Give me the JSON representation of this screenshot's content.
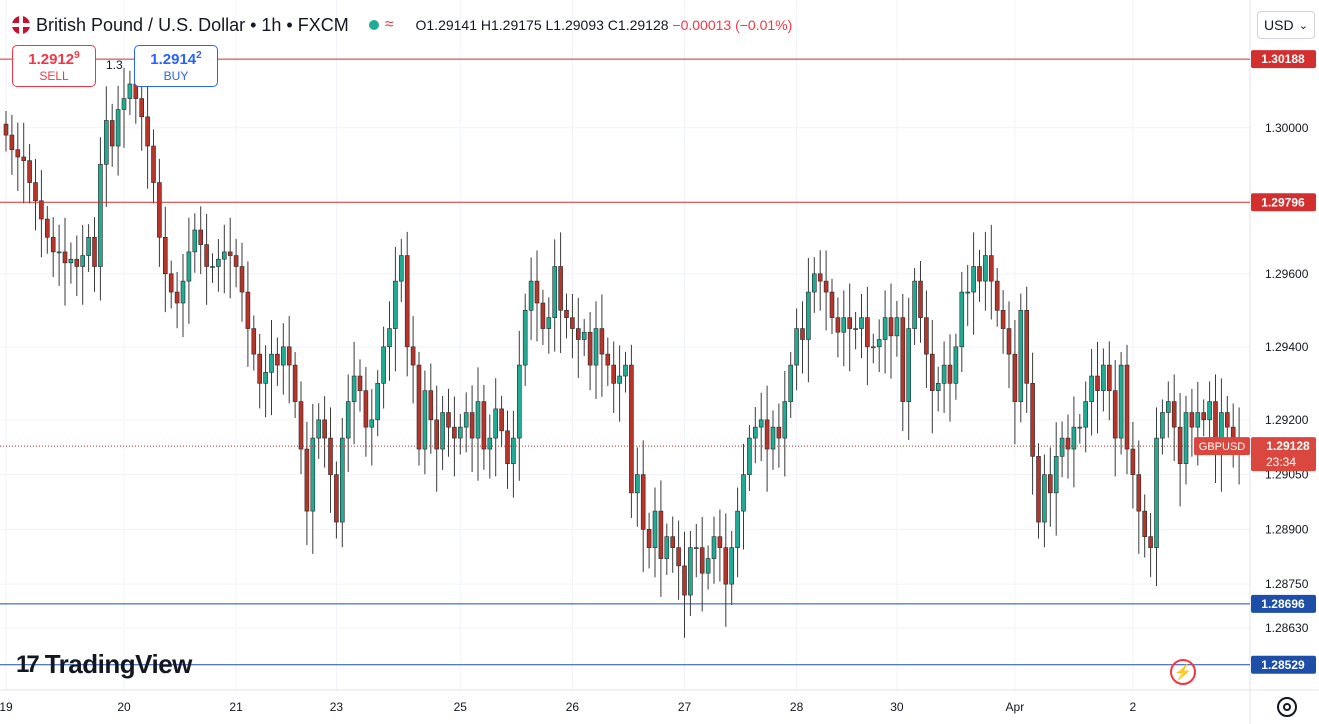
{
  "header": {
    "title": "British Pound / U.S. Dollar • 1h • FXCM",
    "open": "O1.29141",
    "high": "H1.29175",
    "low": "L1.29093",
    "close": "C1.29128",
    "change": "−0.00013 (−0.01%)"
  },
  "trade": {
    "sell_price_main": "1.2912",
    "sell_price_sup": "9",
    "sell_label": "SELL",
    "spread": "1.3",
    "buy_price_main": "1.2914",
    "buy_price_sup": "2",
    "buy_label": "BUY"
  },
  "currency": {
    "label": "USD",
    "icon": "chevron-down-icon"
  },
  "branding": {
    "logo_text": "TradingView",
    "logo_mark": "17"
  },
  "colors": {
    "up": "#22ab94",
    "down": "#f23645",
    "candle_body_up": "#22ab94",
    "candle_body_down": "#b5352a",
    "resistance": "#d32f2f",
    "support": "#1e4fa8",
    "text": "#131722"
  },
  "chart_data": {
    "type": "candlestick",
    "symbol": "GBPUSD",
    "timeframe": "1h",
    "ylim": [
      1.2846,
      1.3035
    ],
    "y_ticks": [
      "1.30000",
      "1.29600",
      "1.29400",
      "1.29200",
      "1.29050",
      "1.28900",
      "1.28750",
      "1.28630"
    ],
    "x_ticks": [
      {
        "label": "19",
        "index": 0
      },
      {
        "label": "20",
        "index": 20
      },
      {
        "label": "21",
        "index": 39
      },
      {
        "label": "23",
        "index": 56
      },
      {
        "label": "25",
        "index": 77
      },
      {
        "label": "26",
        "index": 96
      },
      {
        "label": "27",
        "index": 115
      },
      {
        "label": "28",
        "index": 134
      },
      {
        "label": "30",
        "index": 151
      },
      {
        "label": "Apr",
        "index": 171
      },
      {
        "label": "2",
        "index": 191
      }
    ],
    "levels": [
      {
        "price": 1.30188,
        "label": "1.30188",
        "kind": "resistance"
      },
      {
        "price": 1.29796,
        "label": "1.29796",
        "kind": "resistance"
      },
      {
        "price": 1.28696,
        "label": "1.28696",
        "kind": "support"
      },
      {
        "price": 1.28529,
        "label": "1.28529",
        "kind": "support"
      }
    ],
    "last_price": {
      "price": 1.29128,
      "label": "1.29128",
      "symbol": "GBPUSD",
      "countdown": "23:34"
    },
    "close": [
      1.2998,
      1.2994,
      1.2992,
      1.2991,
      1.2985,
      1.298,
      1.2975,
      1.297,
      1.2966,
      1.2966,
      1.2963,
      1.2964,
      1.2962,
      1.2965,
      1.297,
      1.2962,
      1.299,
      1.3002,
      1.2995,
      1.3005,
      1.3008,
      1.3012,
      1.3008,
      1.3003,
      1.2995,
      1.2985,
      1.297,
      1.296,
      1.2955,
      1.2952,
      1.2958,
      1.2966,
      1.2972,
      1.2968,
      1.2962,
      1.2962,
      1.2964,
      1.2966,
      1.2965,
      1.2962,
      1.2955,
      1.2945,
      1.2938,
      1.293,
      1.2933,
      1.2938,
      1.2935,
      1.294,
      1.2935,
      1.2925,
      1.2912,
      1.2895,
      1.2915,
      1.292,
      1.2915,
      1.2905,
      1.2892,
      1.2915,
      1.2925,
      1.2932,
      1.2928,
      1.2918,
      1.292,
      1.293,
      1.294,
      1.2945,
      1.2958,
      1.2965,
      1.294,
      1.2935,
      1.2912,
      1.2928,
      1.292,
      1.2912,
      1.2922,
      1.2918,
      1.2915,
      1.2918,
      1.2922,
      1.2915,
      1.2925,
      1.2912,
      1.2915,
      1.2923,
      1.2917,
      1.2908,
      1.2915,
      1.2935,
      1.295,
      1.2958,
      1.2952,
      1.2945,
      1.2948,
      1.2962,
      1.295,
      1.2948,
      1.2945,
      1.2942,
      1.2944,
      1.2935,
      1.2945,
      1.2938,
      1.2935,
      1.293,
      1.2932,
      1.2935,
      1.29,
      1.2905,
      1.289,
      1.2885,
      1.2895,
      1.2882,
      1.2888,
      1.2885,
      1.288,
      1.2872,
      1.2885,
      1.2885,
      1.2878,
      1.2882,
      1.2888,
      1.2885,
      1.2875,
      1.2885,
      1.2895,
      1.2905,
      1.2915,
      1.2918,
      1.292,
      1.2912,
      1.2918,
      1.2915,
      1.2925,
      1.2935,
      1.2945,
      1.2942,
      1.2955,
      1.296,
      1.2958,
      1.2955,
      1.2948,
      1.2944,
      1.2948,
      1.2945,
      1.2945,
      1.2948,
      1.294,
      1.294,
      1.2942,
      1.2948,
      1.2943,
      1.2948,
      1.2925,
      1.2945,
      1.2958,
      1.2948,
      1.2938,
      1.2928,
      1.293,
      1.2935,
      1.293,
      1.294,
      1.2955,
      1.2955,
      1.2962,
      1.2958,
      1.2965,
      1.2958,
      1.295,
      1.2945,
      1.2938,
      1.2925,
      1.295,
      1.293,
      1.291,
      1.2892,
      1.2905,
      1.29,
      1.291,
      1.2915,
      1.2912,
      1.2918,
      1.2918,
      1.2925,
      1.2932,
      1.2928,
      1.2935,
      1.2928,
      1.2915,
      1.2935,
      1.2912,
      1.2905,
      1.2895,
      1.2888,
      1.2885,
      1.2915,
      1.2922,
      1.2925,
      1.2918,
      1.2908,
      1.2922,
      1.2918,
      1.2922,
      1.292,
      1.2925,
      1.2912,
      1.2922,
      1.2918,
      1.2915,
      1.29128
    ]
  }
}
